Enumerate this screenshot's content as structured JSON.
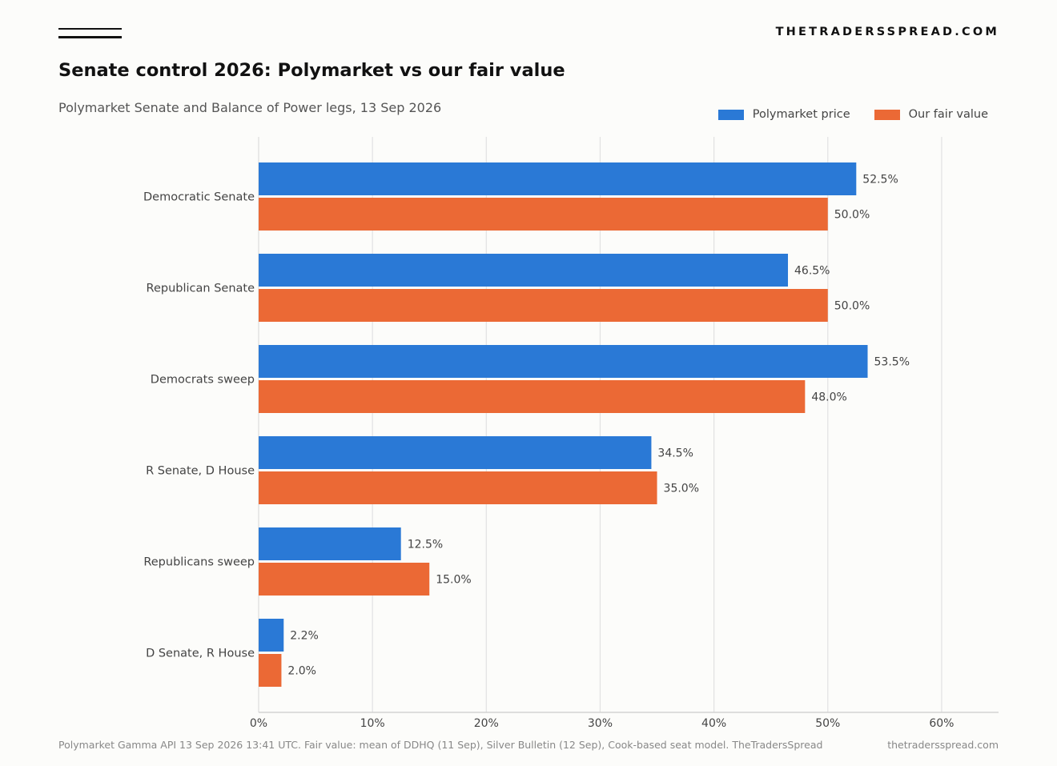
{
  "header": {
    "brand": "THETRADERSSPREAD.COM",
    "title": "Senate control 2026: Polymarket vs our fair value",
    "subtitle": "Polymarket Senate and Balance of Power legs, 13 Sep 2026"
  },
  "legend": {
    "series_1": "Polymarket price",
    "series_2": "Our fair value"
  },
  "colors": {
    "polymarket": "#2a79d6",
    "fair_value": "#eb6935",
    "grid": "#e2e2e2",
    "tick_text": "#444444",
    "label_text": "#444444"
  },
  "chart_data": {
    "type": "bar",
    "orientation": "horizontal",
    "title": "Senate control 2026: Polymarket vs our fair value",
    "subtitle": "Polymarket Senate and Balance of Power legs, 13 Sep 2026",
    "categories": [
      "Democratic Senate",
      "Republican Senate",
      "Democrats sweep",
      "R Senate, D House",
      "Republicans sweep",
      "D Senate, R House"
    ],
    "series": [
      {
        "name": "Polymarket price",
        "values": [
          52.5,
          46.5,
          53.5,
          34.5,
          12.5,
          2.2
        ]
      },
      {
        "name": "Our fair value",
        "values": [
          50.0,
          50.0,
          48.0,
          35.0,
          15.0,
          2.0
        ]
      }
    ],
    "value_unit": "%",
    "xlim": [
      0,
      65
    ],
    "xticks": [
      0,
      10,
      20,
      30,
      40,
      50,
      60
    ],
    "xtick_labels": [
      "0%",
      "10%",
      "20%",
      "30%",
      "40%",
      "50%",
      "60%"
    ],
    "grid": true,
    "legend_position": "top-right"
  },
  "footer": {
    "source": "Polymarket Gamma API 13 Sep 2026 13:41 UTC. Fair value: mean of DDHQ (11 Sep), Silver Bulletin (12 Sep), Cook-based seat model. TheTradersSpread",
    "site": "thetradersspread.com"
  }
}
